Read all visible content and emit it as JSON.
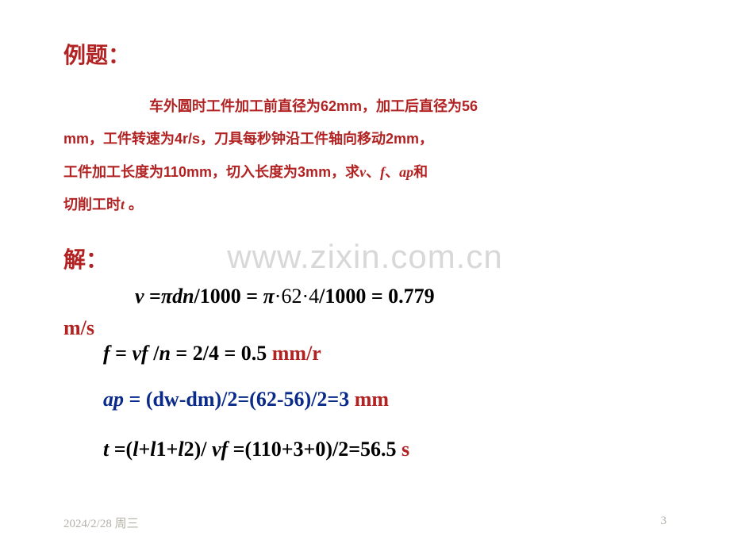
{
  "title": "例题：",
  "problem": {
    "line1": "车外圆时工件加工前直径为62mm，加工后直径为56",
    "line2_a": "mm，工件转速为4r/s，刀具每秒钟沿工件轴向移动2mm，",
    "line3_a": "工件加工长度为110mm，切入长度为3mm，求",
    "line3_v": "v",
    "line3_b": "、",
    "line3_f": "f",
    "line3_c": "、",
    "line3_ap": "ap",
    "line3_d": "和",
    "line4_a": "切削工时",
    "line4_t": "t",
    "line4_b": " 。"
  },
  "watermark": "www.zixin.com.cn",
  "solution_label": "解：",
  "eq": {
    "v": {
      "lhs_v": "v ",
      "rhs1": "=",
      "pi": "π",
      "dn": "dn",
      "rhs2": "/1000 = ",
      "pi2": "π",
      "nums": "·62·4",
      "rhs3": "/1000 = 0.779",
      "unit": "m/s"
    },
    "f": {
      "lhs": "f",
      "mid1": " = ",
      "vf": "vf ",
      "mid2": "/",
      "n": "n",
      "mid3": " = 2/4 = 0.5  ",
      "unit": "mm/r"
    },
    "ap": {
      "lhs": "ap",
      "body": " = (dw-dm)/2=(62-56)/2=3 ",
      "unit": "mm"
    },
    "t": {
      "lhs": "t ",
      "eq": "=(",
      "l": "l",
      "plus1": "+",
      "l1": "l",
      "one": "1+",
      "l2": "l",
      "two": "2)/",
      "vf": " vf ",
      "rest": "=(110+3+0)/2=56.5 ",
      "unit": "s"
    }
  },
  "footer": {
    "date": "2024/2/28 周三",
    "page": "3"
  },
  "colors": {
    "brand_red": "#b22222",
    "blue": "#0a2a8a",
    "watermark": "#d8d8d8",
    "footer": "#b5b1a8",
    "bg": "#ffffff"
  }
}
